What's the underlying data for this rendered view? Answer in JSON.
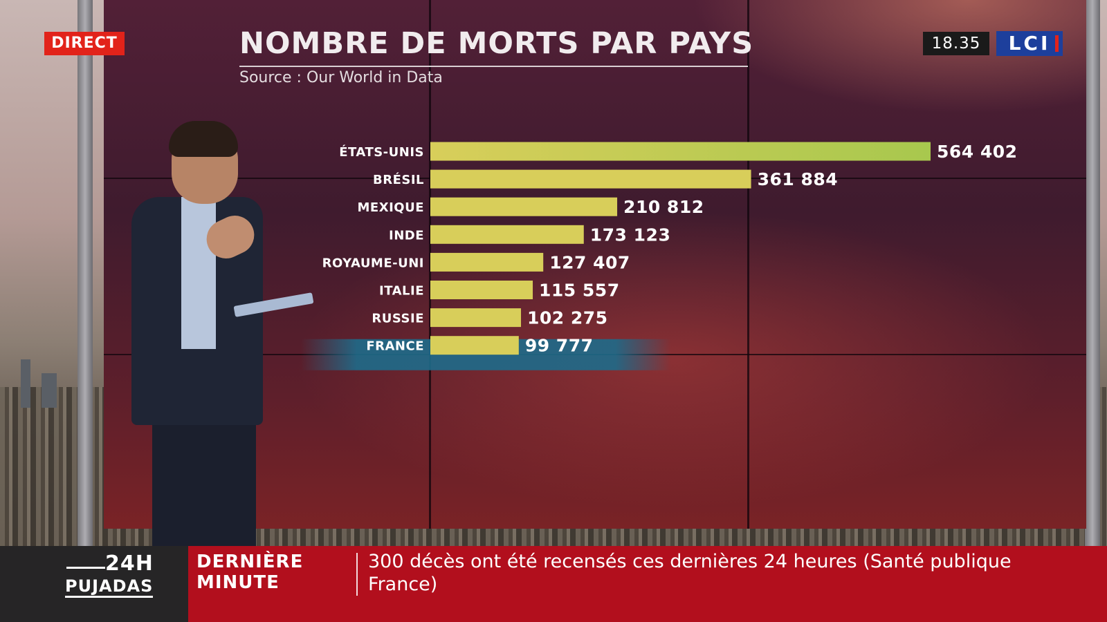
{
  "broadcast": {
    "live_badge": "DIRECT",
    "clock": "18.35",
    "channel_logo": "LCI",
    "show": {
      "slot": "24H",
      "name": "PUJADAS"
    },
    "breaking": {
      "label": "DERNIÈRE MINUTE",
      "text": "300 décès ont été recensés ces dernières 24 heures (Santé publique France)"
    }
  },
  "colors": {
    "bar": "#d8ce5a",
    "bar_top": "#a8c84e",
    "highlight": "#1e6b8a",
    "live_red": "#e2231a",
    "ticker_red": "#b20f1d",
    "lci_blue": "#1d3f9c"
  },
  "chart_data": {
    "type": "bar",
    "orientation": "horizontal",
    "title": "NOMBRE DE MORTS PAR PAYS",
    "subtitle": "Source : Our World in Data",
    "categories": [
      "ÉTATS-UNIS",
      "BRÉSIL",
      "MEXIQUE",
      "INDE",
      "ROYAUME-UNI",
      "ITALIE",
      "RUSSIE",
      "FRANCE"
    ],
    "values": [
      564402,
      361884,
      210812,
      173123,
      127407,
      115557,
      102275,
      99777
    ],
    "value_labels": [
      "564 402",
      "361 884",
      "210 812",
      "173 123",
      "127 407",
      "115 557",
      "102 275",
      "99 777"
    ],
    "highlighted": "FRANCE",
    "xlim": [
      0,
      564402
    ],
    "grid": false,
    "legend": "none"
  }
}
